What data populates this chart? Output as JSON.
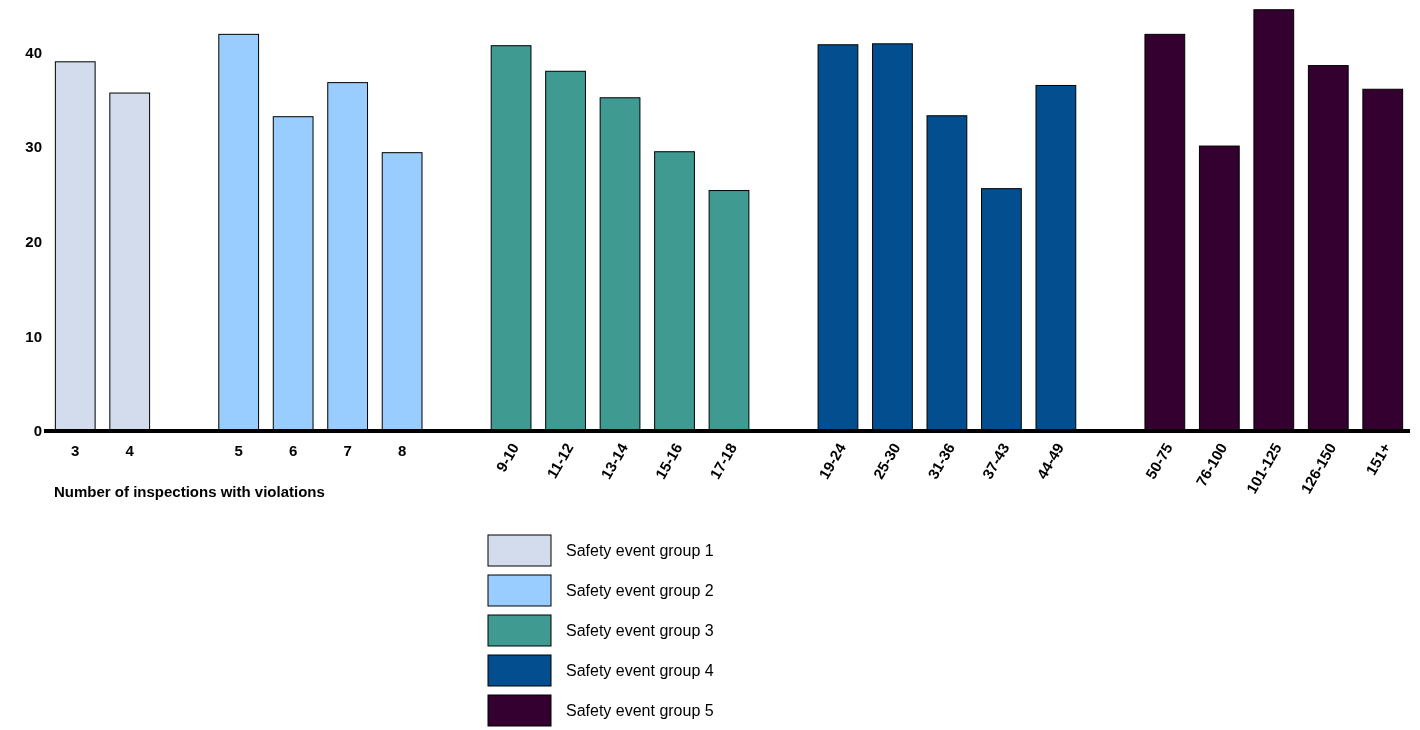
{
  "chart_data": {
    "type": "bar",
    "xlabel": "Number of inspections with violations",
    "categories": [
      "3",
      "4",
      null,
      "5",
      "6",
      "7",
      "8",
      null,
      "9-10",
      "11-12",
      "13-14",
      "15-16",
      "17-18",
      null,
      "19-24",
      "25-30",
      "31-36",
      "37-43",
      "44-49",
      null,
      "50-75",
      "76-100",
      "101-125",
      "126-150",
      "151+"
    ],
    "series": [
      {
        "name": "Safety event group 1",
        "color": "#d3dcec",
        "values": [
          39.0,
          35.7,
          null,
          null,
          null,
          null,
          null,
          null,
          null,
          null,
          null,
          null,
          null,
          null,
          null,
          null,
          null,
          null,
          null,
          null,
          null,
          null,
          null,
          null,
          null
        ]
      },
      {
        "name": "Safety event group 2",
        "color": "#99ccff",
        "values": [
          null,
          null,
          null,
          41.9,
          33.2,
          36.8,
          29.4,
          null,
          null,
          null,
          null,
          null,
          null,
          null,
          null,
          null,
          null,
          null,
          null,
          null,
          null,
          null,
          null,
          null,
          null
        ]
      },
      {
        "name": "Safety event group 3",
        "color": "#3f9a92",
        "values": [
          null,
          null,
          null,
          null,
          null,
          null,
          null,
          null,
          40.7,
          38.0,
          35.2,
          29.5,
          25.4,
          null,
          null,
          null,
          null,
          null,
          null,
          null,
          null,
          null,
          null,
          null,
          null
        ]
      },
      {
        "name": "Safety event group 4",
        "color": "#034e8e",
        "values": [
          null,
          null,
          null,
          null,
          null,
          null,
          null,
          null,
          null,
          null,
          null,
          null,
          null,
          null,
          40.8,
          40.9,
          33.3,
          25.6,
          36.5,
          null,
          null,
          null,
          null,
          null,
          null
        ]
      },
      {
        "name": "Safety event group 5",
        "color": "#33002f",
        "values": [
          null,
          null,
          null,
          null,
          null,
          null,
          null,
          null,
          null,
          null,
          null,
          null,
          null,
          null,
          null,
          null,
          null,
          null,
          null,
          null,
          41.9,
          30.1,
          44.5,
          38.6,
          36.1
        ]
      }
    ],
    "ylim": [
      0,
      45
    ],
    "yticks": [
      0,
      10,
      20,
      30,
      40
    ],
    "grid": false,
    "legend": "bottom"
  }
}
